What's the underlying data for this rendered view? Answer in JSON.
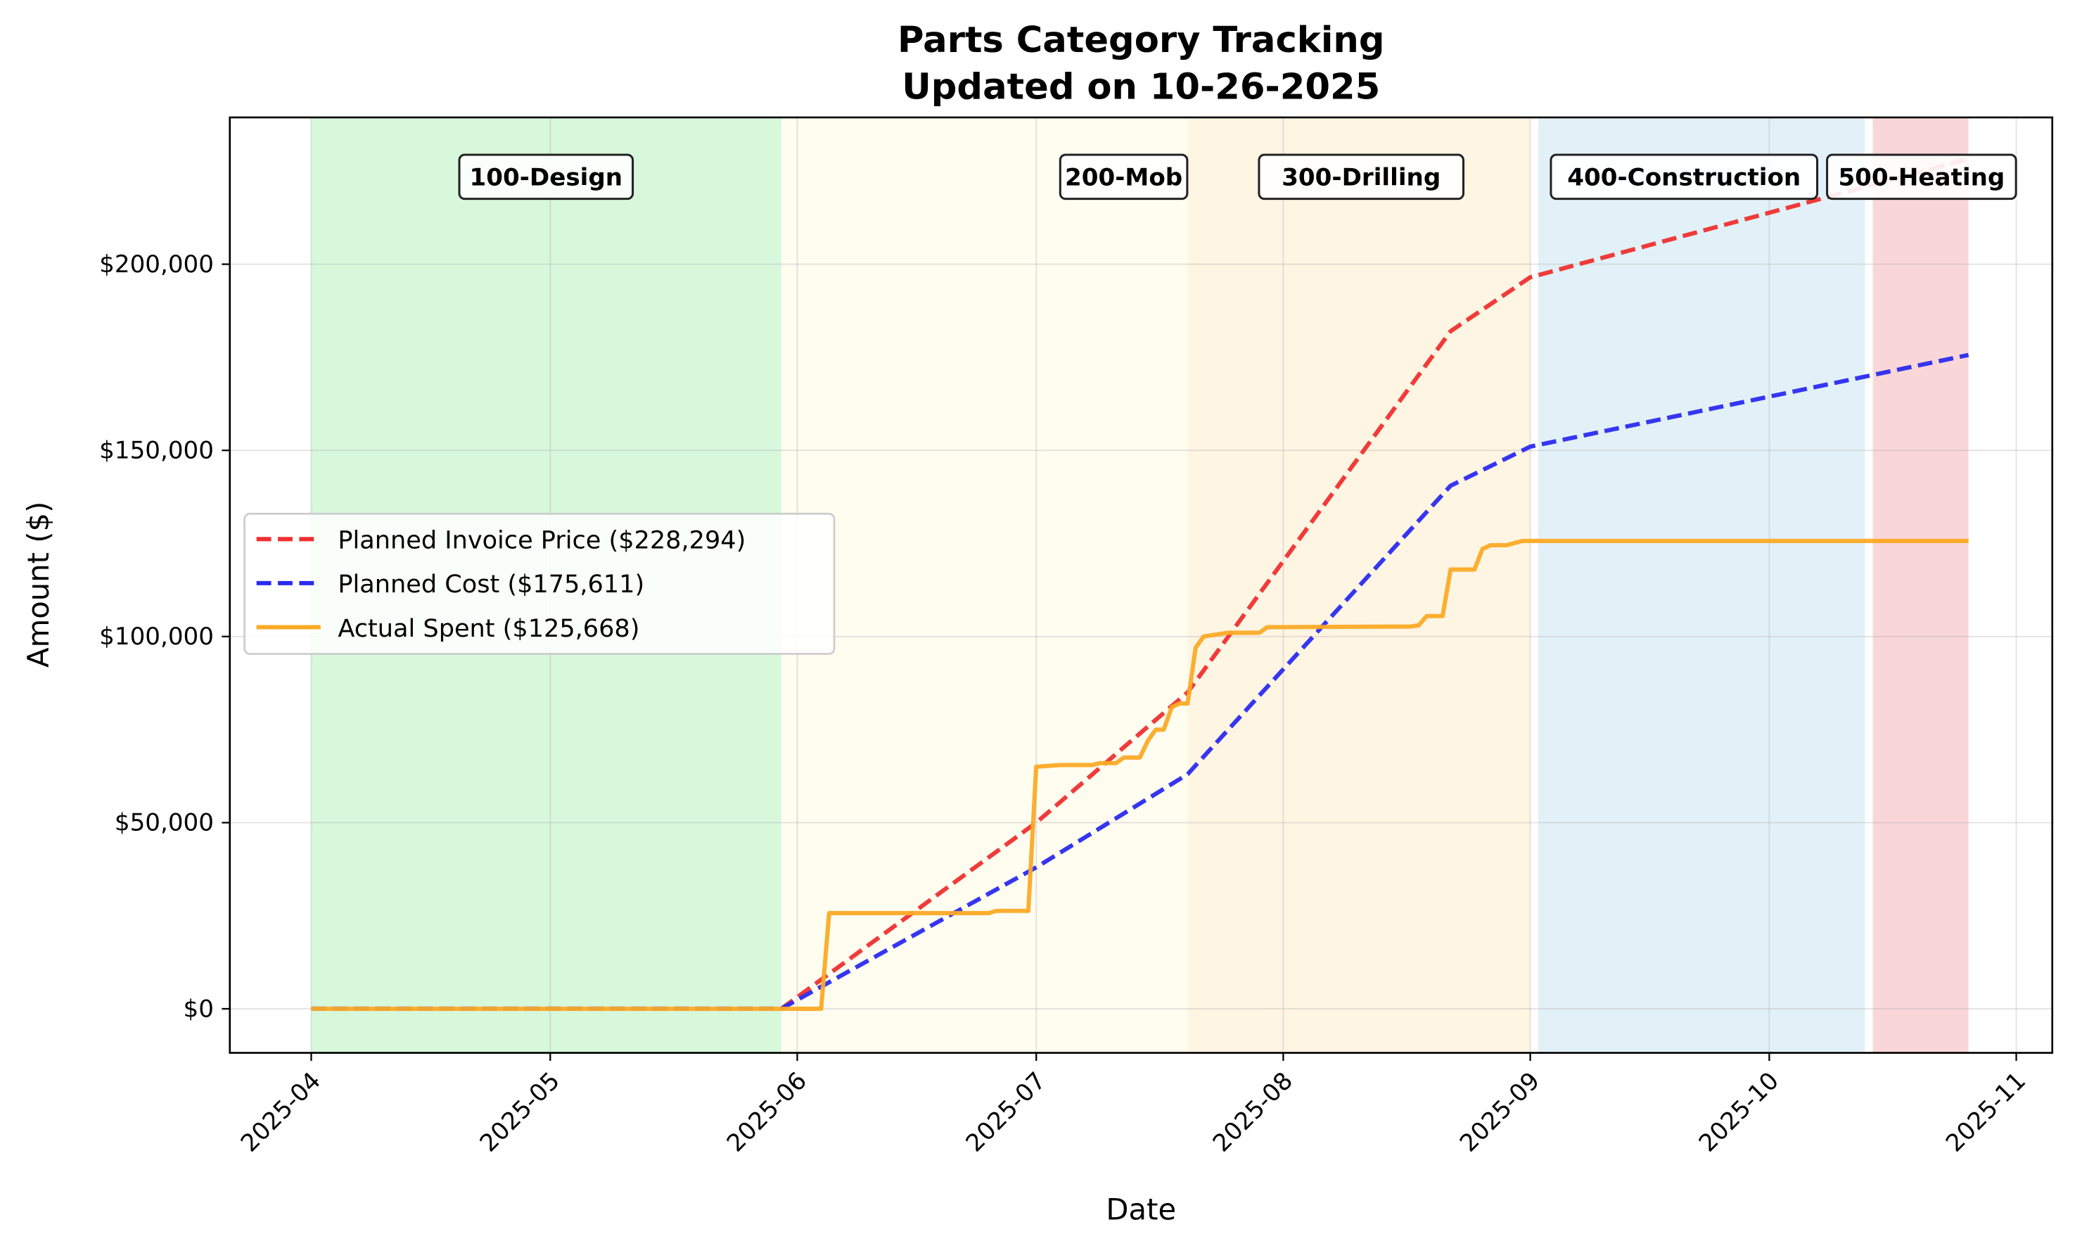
{
  "chart_data": {
    "type": "line",
    "title": "Parts Category Tracking",
    "subtitle": "Updated on 10-26-2025",
    "xlabel": "Date",
    "ylabel": "Amount ($)",
    "xlim": [
      "2025-03-20",
      "2025-11-05"
    ],
    "ylim": [
      -12000,
      240000
    ],
    "grid": true,
    "legend_placement": "center-left",
    "x_ticks": [
      {
        "date": "2025-04-01",
        "label": "2025-04"
      },
      {
        "date": "2025-05-01",
        "label": "2025-05"
      },
      {
        "date": "2025-06-01",
        "label": "2025-06"
      },
      {
        "date": "2025-07-01",
        "label": "2025-07"
      },
      {
        "date": "2025-08-01",
        "label": "2025-08"
      },
      {
        "date": "2025-09-01",
        "label": "2025-09"
      },
      {
        "date": "2025-10-01",
        "label": "2025-10"
      },
      {
        "date": "2025-11-01",
        "label": "2025-11"
      }
    ],
    "y_ticks": [
      {
        "value": 0,
        "label": "$0"
      },
      {
        "value": 50000,
        "label": "$50,000"
      },
      {
        "value": 100000,
        "label": "$100,000"
      },
      {
        "value": 150000,
        "label": "$150,000"
      },
      {
        "value": 200000,
        "label": "$200,000"
      }
    ],
    "phases": [
      {
        "label": "100-Design",
        "start": "2025-04-01",
        "end": "2025-05-30",
        "color": "#c8f5cc"
      },
      {
        "label": "200-Mob",
        "start": "2025-05-30",
        "end": "2025-07-20",
        "color": "#fffbea"
      },
      {
        "label": "300-Drilling",
        "start": "2025-07-20",
        "end": "2025-09-01",
        "color": "#fff1d6"
      },
      {
        "label": "400-Construction",
        "start": "2025-09-02",
        "end": "2025-10-13",
        "color": "#d5ebf3"
      },
      {
        "label": "500-Heating",
        "start": "2025-10-14",
        "end": "2025-10-26",
        "color": "#f6c4c6"
      }
    ],
    "series": [
      {
        "name": "Planned Invoice Price ($228,294)",
        "color": "#f03030",
        "style": "dashed",
        "points": [
          [
            "2025-04-01",
            0
          ],
          [
            "2025-05-30",
            0
          ],
          [
            "2025-07-01",
            50000
          ],
          [
            "2025-07-20",
            85000
          ],
          [
            "2025-08-22",
            182000
          ],
          [
            "2025-09-01",
            196500
          ],
          [
            "2025-10-26",
            228294
          ]
        ]
      },
      {
        "name": "Planned Cost ($175,611)",
        "color": "#2b2bf0",
        "style": "dashed",
        "points": [
          [
            "2025-04-01",
            0
          ],
          [
            "2025-05-30",
            0
          ],
          [
            "2025-07-01",
            38000
          ],
          [
            "2025-07-20",
            63000
          ],
          [
            "2025-08-22",
            140500
          ],
          [
            "2025-09-01",
            151000
          ],
          [
            "2025-10-26",
            175611
          ]
        ]
      },
      {
        "name": "Actual Spent ($125,668)",
        "color": "#fbaa25",
        "style": "solid",
        "points": [
          [
            "2025-04-01",
            0
          ],
          [
            "2025-06-04",
            0
          ],
          [
            "2025-06-05",
            25700
          ],
          [
            "2025-06-25",
            25700
          ],
          [
            "2025-06-26",
            26300
          ],
          [
            "2025-06-30",
            26300
          ],
          [
            "2025-07-01",
            65000
          ],
          [
            "2025-07-04",
            65500
          ],
          [
            "2025-07-08",
            65500
          ],
          [
            "2025-07-09",
            66000
          ],
          [
            "2025-07-11",
            66000
          ],
          [
            "2025-07-12",
            67500
          ],
          [
            "2025-07-14",
            67500
          ],
          [
            "2025-07-15",
            72000
          ],
          [
            "2025-07-16",
            75000
          ],
          [
            "2025-07-17",
            75000
          ],
          [
            "2025-07-18",
            81000
          ],
          [
            "2025-07-19",
            82000
          ],
          [
            "2025-07-20",
            82000
          ],
          [
            "2025-07-21",
            97000
          ],
          [
            "2025-07-22",
            100000
          ],
          [
            "2025-07-25",
            101000
          ],
          [
            "2025-07-29",
            101000
          ],
          [
            "2025-07-30",
            102500
          ],
          [
            "2025-08-17",
            102700
          ],
          [
            "2025-08-18",
            103000
          ],
          [
            "2025-08-19",
            105500
          ],
          [
            "2025-08-21",
            105500
          ],
          [
            "2025-08-22",
            118000
          ],
          [
            "2025-08-25",
            118000
          ],
          [
            "2025-08-26",
            123500
          ],
          [
            "2025-08-27",
            124500
          ],
          [
            "2025-08-29",
            124500
          ],
          [
            "2025-08-31",
            125668
          ],
          [
            "2025-10-26",
            125668
          ]
        ]
      }
    ]
  }
}
